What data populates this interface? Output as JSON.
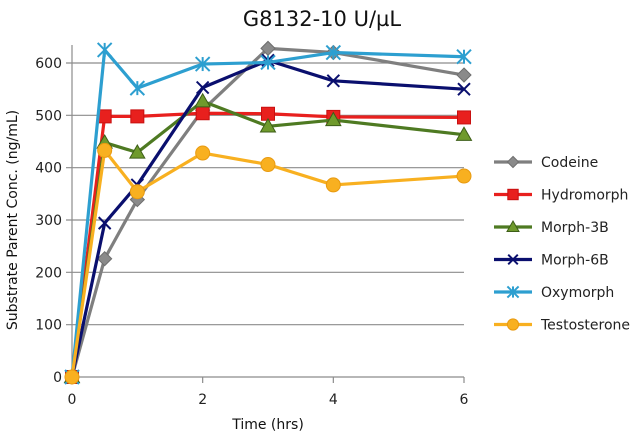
{
  "chart_data": {
    "type": "line",
    "title": "G8132-10 U/µL",
    "xlabel": "Time (hrs)",
    "ylabel": "Substrate Parent Conc. (ng/mL)",
    "xlim": [
      0,
      6
    ],
    "ylim": [
      0,
      630
    ],
    "xticks": [
      0,
      2,
      4,
      6
    ],
    "yticks": [
      0,
      100,
      200,
      300,
      400,
      500,
      600
    ],
    "grid": "horizontal",
    "legend_position": "right",
    "x": [
      0,
      0.5,
      1,
      2,
      3,
      4,
      6
    ],
    "series": [
      {
        "name": "Codeine",
        "color": "#7f7f7f",
        "marker": "diamond",
        "values": [
          0,
          226,
          339,
          510,
          628,
          620,
          577
        ]
      },
      {
        "name": "Hydromorph",
        "color": "#e8201e",
        "marker": "square",
        "values": [
          0,
          498,
          498,
          504,
          503,
          497,
          496
        ]
      },
      {
        "name": "Morph-3B",
        "color": "#4e7a22",
        "marker": "triangle",
        "values": [
          0,
          448,
          429,
          527,
          479,
          491,
          463
        ]
      },
      {
        "name": "Morph-6B",
        "color": "#0a0f6e",
        "marker": "x",
        "values": [
          0,
          294,
          367,
          553,
          605,
          566,
          550
        ]
      },
      {
        "name": "Oxymorph",
        "color": "#2d9fd0",
        "marker": "star",
        "values": [
          0,
          625,
          552,
          598,
          601,
          620,
          612
        ]
      },
      {
        "name": "Testosterone",
        "color": "#f8b020",
        "marker": "circle",
        "values": [
          0,
          433,
          354,
          428,
          406,
          367,
          384
        ]
      }
    ]
  }
}
